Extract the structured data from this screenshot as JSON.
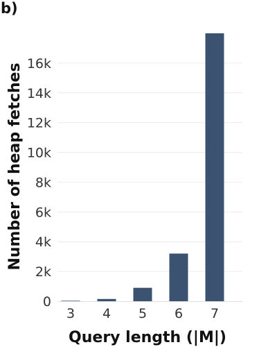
{
  "panel_label": "b)",
  "chart_data": {
    "type": "bar",
    "categories": [
      "3",
      "4",
      "5",
      "6",
      "7"
    ],
    "values": [
      30,
      150,
      900,
      3200,
      18000
    ],
    "xlabel": "Query length (|M|)",
    "ylabel": "Number of heap fetches",
    "ylim": [
      0,
      18000
    ],
    "yticks": [
      0,
      2000,
      4000,
      6000,
      8000,
      10000,
      12000,
      14000,
      16000
    ],
    "ytick_labels": [
      "0",
      "2k",
      "4k",
      "6k",
      "8k",
      "10k",
      "12k",
      "14k",
      "16k"
    ],
    "grid": true,
    "bar_color": "#3b5370"
  }
}
